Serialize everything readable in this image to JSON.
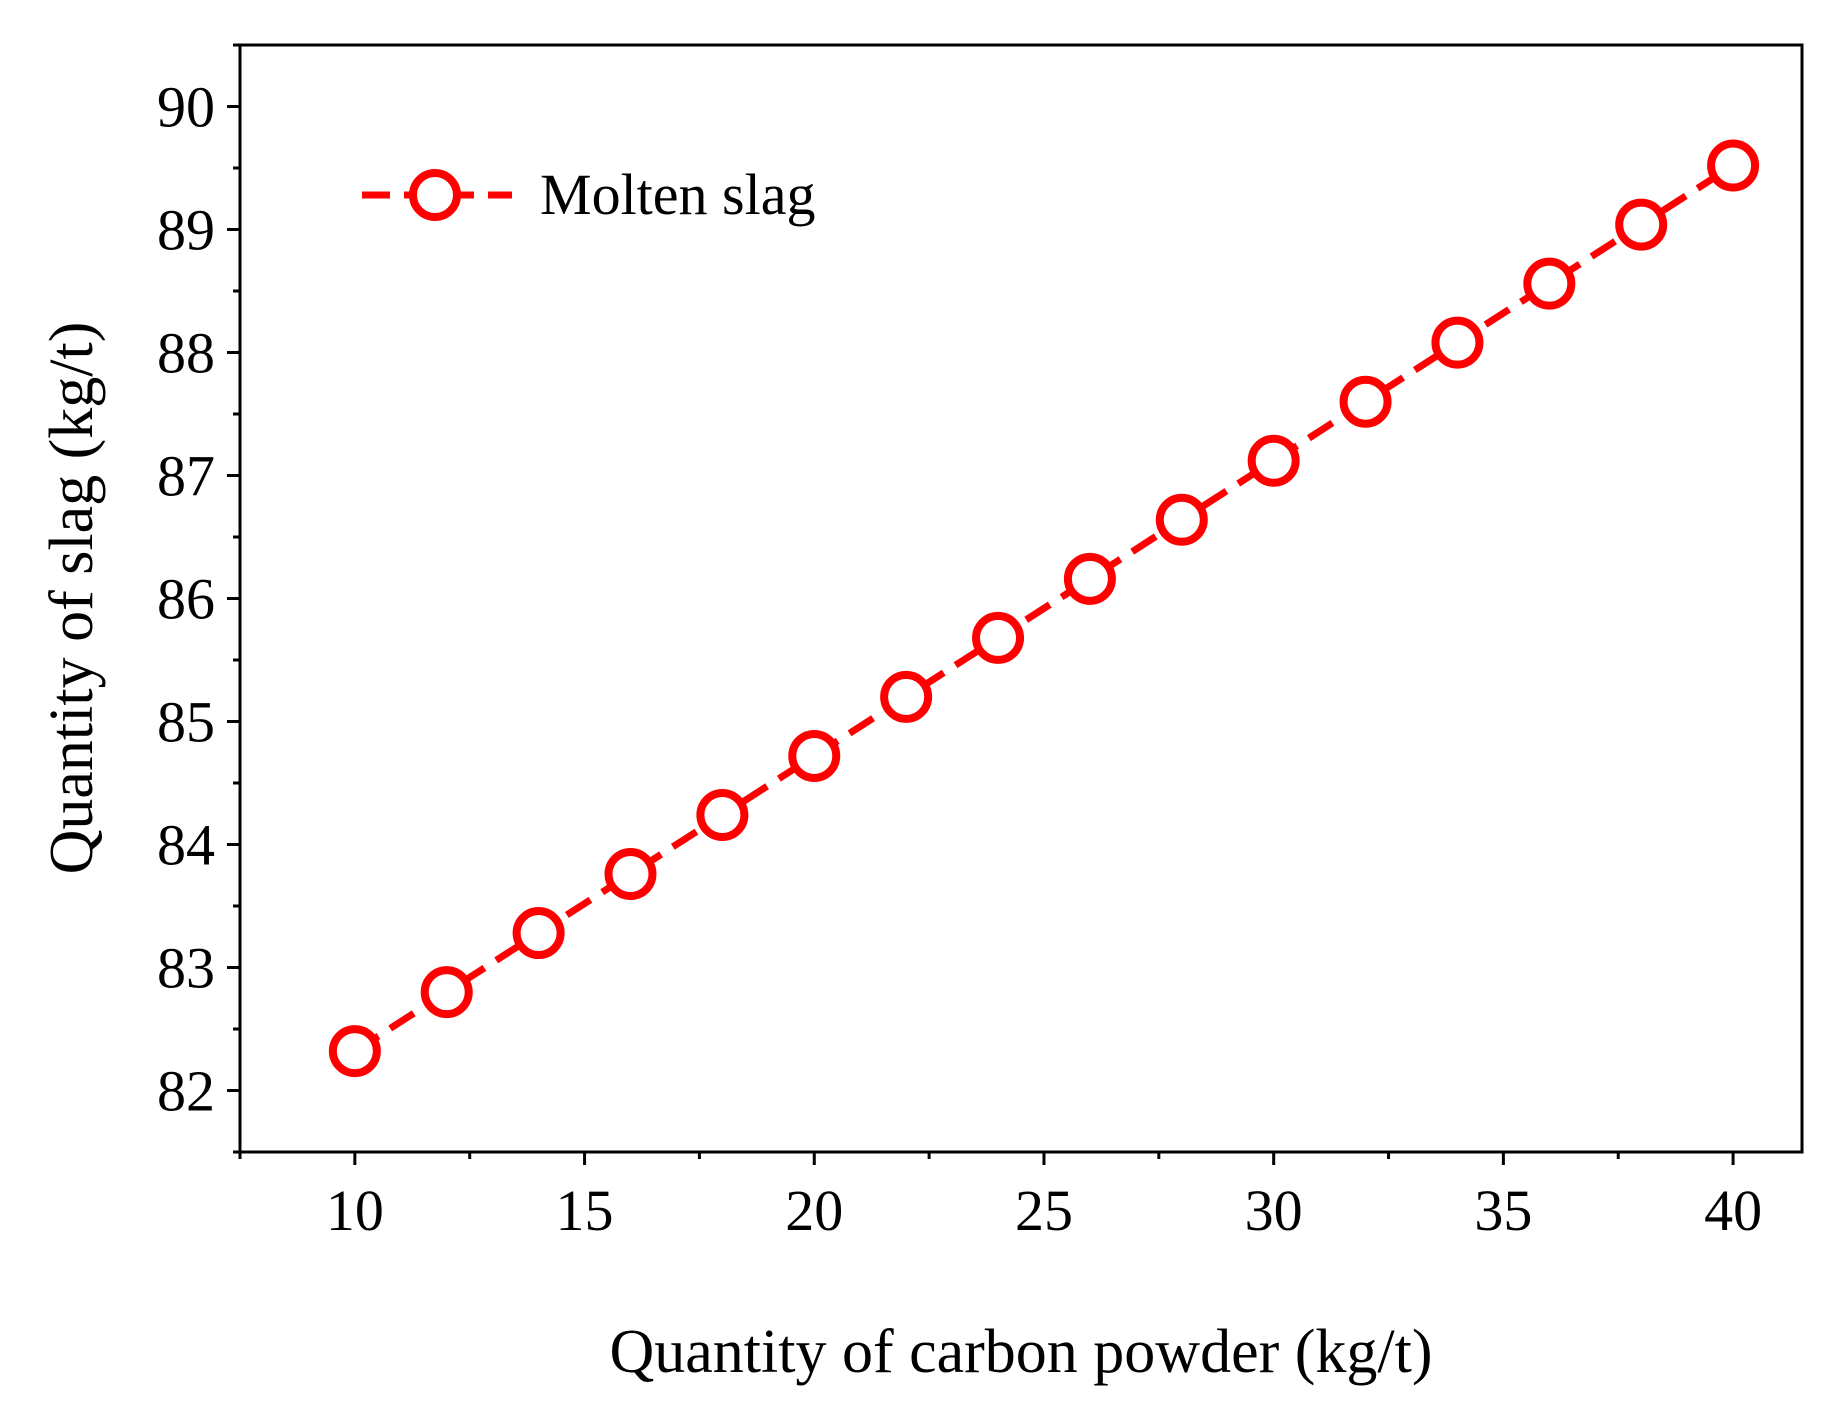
{
  "chart_data": {
    "type": "line",
    "xlabel": "Quantity of carbon powder (kg/t)",
    "ylabel": "Quantity of slag (kg/t)",
    "xlim": [
      7.5,
      41.5
    ],
    "ylim": [
      81.5,
      90.5
    ],
    "x_ticks": [
      10,
      15,
      20,
      25,
      30,
      35,
      40
    ],
    "x_tick_labels": [
      "10",
      "15",
      "20",
      "25",
      "30",
      "35",
      "40"
    ],
    "y_ticks": [
      82,
      83,
      84,
      85,
      86,
      87,
      88,
      89,
      90
    ],
    "y_tick_labels": [
      "82",
      "83",
      "84",
      "85",
      "86",
      "87",
      "88",
      "89",
      "90"
    ],
    "legend_position": "top-left",
    "series": [
      {
        "name": "Molten slag",
        "color": "#ff0000",
        "line_style": "dashed",
        "marker": "open-circle",
        "x": [
          10,
          12,
          14,
          16,
          18,
          20,
          22,
          24,
          26,
          28,
          30,
          32,
          34,
          36,
          38,
          40
        ],
        "values": [
          82.32,
          82.8,
          83.28,
          83.76,
          84.24,
          84.72,
          85.2,
          85.68,
          86.16,
          86.64,
          87.12,
          87.6,
          88.08,
          88.56,
          89.04,
          89.52
        ]
      }
    ]
  }
}
